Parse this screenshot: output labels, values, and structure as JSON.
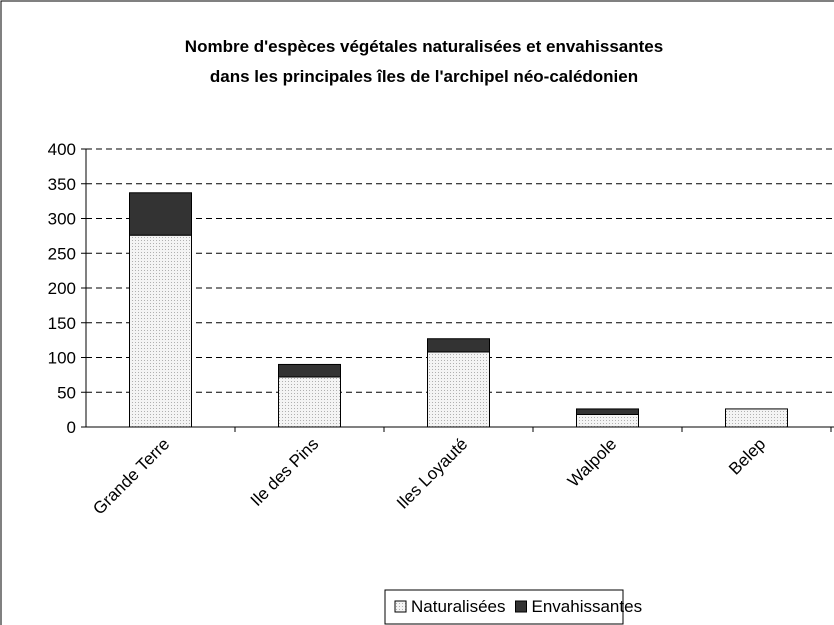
{
  "chart_data": {
    "type": "stacked_bar",
    "title": [
      "Nombre d'espèces végétales naturalisées et envahissantes",
      "dans les principales îles de l'archipel néo-calédonien"
    ],
    "categories": [
      "Grande Terre",
      "Ile des Pins",
      "Iles Loyauté",
      "Walpole",
      "Belep"
    ],
    "series": [
      {
        "name": "Naturalisées",
        "color": "#e6e6e6",
        "values": [
          276,
          72,
          108,
          18,
          26
        ]
      },
      {
        "name": "Envahissantes",
        "color": "#333333",
        "values": [
          61,
          18,
          19,
          8,
          0
        ]
      }
    ],
    "ylim": [
      0,
      400
    ],
    "yticks": [
      0,
      50,
      100,
      150,
      200,
      250,
      300,
      350,
      400
    ],
    "grid": true,
    "legend": "bottom"
  }
}
